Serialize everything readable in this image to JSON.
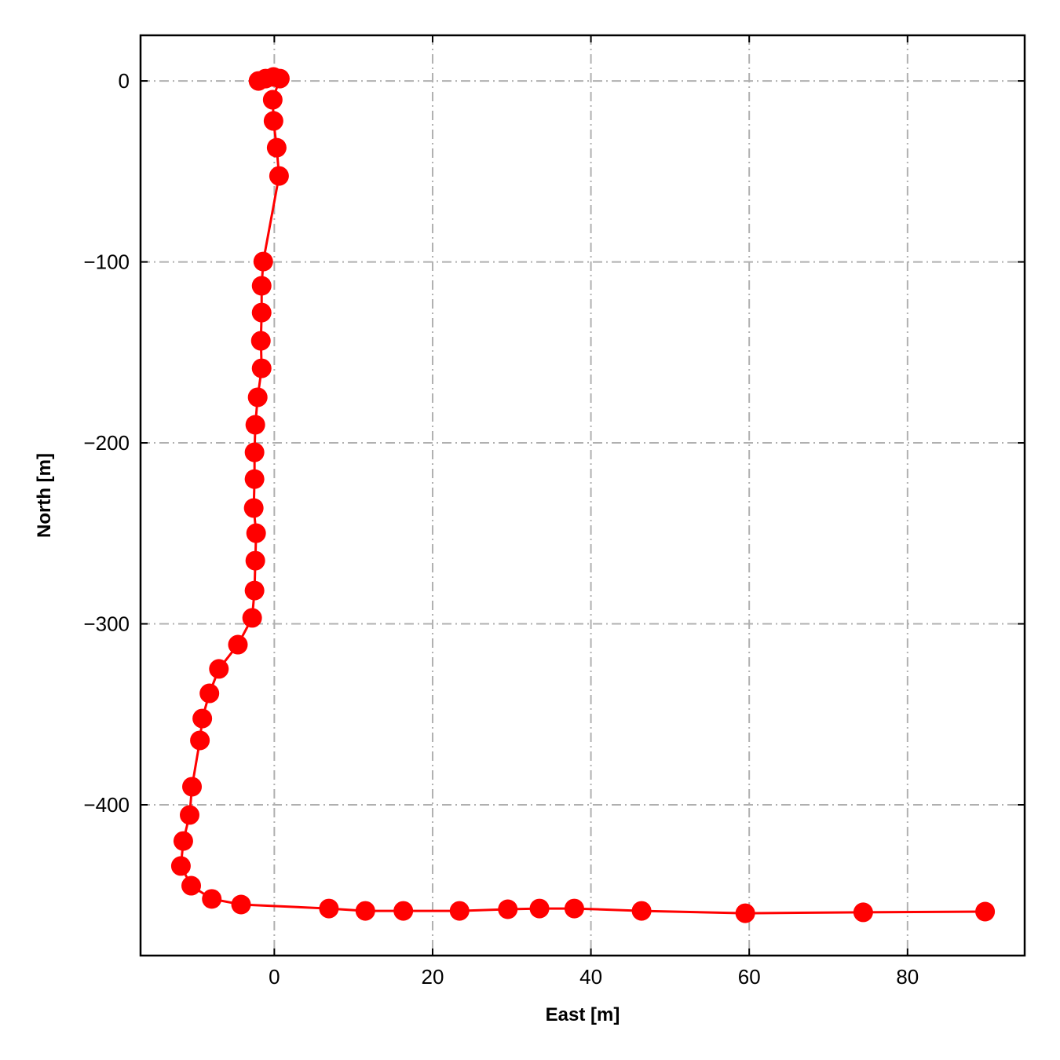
{
  "chart_data": {
    "type": "line",
    "x_label": "East [m]",
    "y_label": "North [m]",
    "series": [
      {
        "color": "#ff0000",
        "x": [
          -2.0,
          -1.1,
          -0.1,
          0.7,
          -0.2,
          -0.1,
          0.3,
          0.6,
          -1.4,
          -1.6,
          -1.6,
          -1.7,
          -1.6,
          -2.1,
          -2.4,
          -2.5,
          -2.5,
          -2.6,
          -2.3,
          -2.4,
          -2.5,
          -2.8,
          -4.6,
          -7.0,
          -8.2,
          -9.1,
          -9.4,
          -10.4,
          -10.7,
          -11.5,
          -11.8,
          -10.5,
          -7.9,
          -4.2,
          6.9,
          11.5,
          16.3,
          23.4,
          29.5,
          33.5,
          37.9,
          46.4,
          59.5,
          74.4,
          89.8
        ],
        "values": [
          0,
          1.3,
          2.2,
          1.3,
          -10.4,
          -22.1,
          -36.9,
          -52.5,
          -99.8,
          -113.2,
          -128,
          -143.6,
          -158.8,
          -174.8,
          -190,
          -205.2,
          -220,
          -236,
          -249.9,
          -265.1,
          -281.6,
          -296.7,
          -311.5,
          -324.9,
          -338.4,
          -352.3,
          -364.4,
          -390,
          -405.6,
          -420,
          -433.8,
          -444.7,
          -452,
          -455.1,
          -457.3,
          -458.6,
          -458.6,
          -458.6,
          -457.7,
          -457.3,
          -457.3,
          -458.6,
          -459.9,
          -459.4,
          -459
        ]
      }
    ],
    "xlim": [
      -16.9,
      94.8
    ],
    "ylim": [
      -483.3,
      25.2
    ],
    "xticks": [
      0,
      20,
      40,
      60,
      80
    ],
    "yticks": [
      {
        "value": -400,
        "label": "−400"
      },
      {
        "value": -300,
        "label": "−300"
      },
      {
        "value": -200,
        "label": "−200"
      },
      {
        "value": -100,
        "label": "−100"
      },
      0
    ],
    "grid": true
  }
}
